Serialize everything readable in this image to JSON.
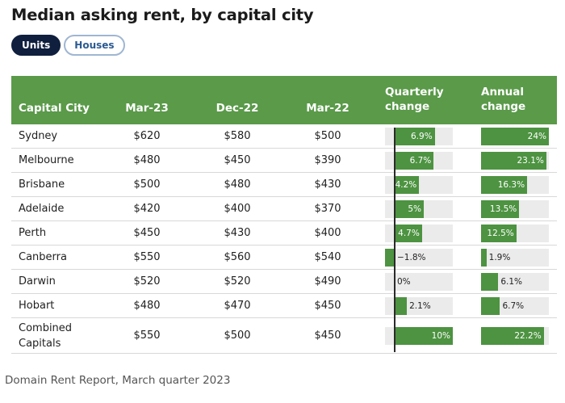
{
  "title": "Median asking rent, by capital city",
  "toggles": {
    "units": "Units",
    "houses": "Houses",
    "active": "units"
  },
  "source": "Domain Rent Report, March quarter 2023",
  "colors": {
    "header": "#5a9a49",
    "bar": "#4d9341",
    "track": "#ebebeb",
    "active_pill": "#0f1f3d"
  },
  "chart_data": {
    "type": "table",
    "title": "Median asking rent, by capital city",
    "columns": [
      "Capital City",
      "Mar-23",
      "Dec-22",
      "Mar-22",
      "Quarterly change",
      "Annual change"
    ],
    "column_headers": {
      "city": "Capital City",
      "mar23": "Mar-23",
      "dec22": "Dec-22",
      "mar22": "Mar-22",
      "quarterly_l1": "Quarterly",
      "quarterly_l2": "change",
      "annual_l1": "Annual",
      "annual_l2": "change"
    },
    "rows": [
      {
        "city": "Sydney",
        "city_l1": "Sydney",
        "city_l2": "",
        "mar23": "$620",
        "dec22": "$580",
        "mar22": "$500",
        "quarterly": 6.9,
        "quarterly_label": "6.9%",
        "annual": 24,
        "annual_label": "24%"
      },
      {
        "city": "Melbourne",
        "city_l1": "Melbourne",
        "city_l2": "",
        "mar23": "$480",
        "dec22": "$450",
        "mar22": "$390",
        "quarterly": 6.7,
        "quarterly_label": "6.7%",
        "annual": 23.1,
        "annual_label": "23.1%"
      },
      {
        "city": "Brisbane",
        "city_l1": "Brisbane",
        "city_l2": "",
        "mar23": "$500",
        "dec22": "$480",
        "mar22": "$430",
        "quarterly": 4.2,
        "quarterly_label": "4.2%",
        "annual": 16.3,
        "annual_label": "16.3%"
      },
      {
        "city": "Adelaide",
        "city_l1": "Adelaide",
        "city_l2": "",
        "mar23": "$420",
        "dec22": "$400",
        "mar22": "$370",
        "quarterly": 5,
        "quarterly_label": "5%",
        "annual": 13.5,
        "annual_label": "13.5%"
      },
      {
        "city": "Perth",
        "city_l1": "Perth",
        "city_l2": "",
        "mar23": "$450",
        "dec22": "$430",
        "mar22": "$400",
        "quarterly": 4.7,
        "quarterly_label": "4.7%",
        "annual": 12.5,
        "annual_label": "12.5%"
      },
      {
        "city": "Canberra",
        "city_l1": "Canberra",
        "city_l2": "",
        "mar23": "$550",
        "dec22": "$560",
        "mar22": "$540",
        "quarterly": -1.8,
        "quarterly_label": "−1.8%",
        "annual": 1.9,
        "annual_label": "1.9%"
      },
      {
        "city": "Darwin",
        "city_l1": "Darwin",
        "city_l2": "",
        "mar23": "$520",
        "dec22": "$520",
        "mar22": "$490",
        "quarterly": 0,
        "quarterly_label": "0%",
        "annual": 6.1,
        "annual_label": "6.1%"
      },
      {
        "city": "Hobart",
        "city_l1": "Hobart",
        "city_l2": "",
        "mar23": "$480",
        "dec22": "$470",
        "mar22": "$450",
        "quarterly": 2.1,
        "quarterly_label": "2.1%",
        "annual": 6.7,
        "annual_label": "6.7%"
      },
      {
        "city": "Combined Capitals",
        "city_l1": "Combined",
        "city_l2": "Capitals",
        "mar23": "$550",
        "dec22": "$500",
        "mar22": "$450",
        "quarterly": 10,
        "quarterly_label": "10%",
        "annual": 22.2,
        "annual_label": "22.2%"
      }
    ],
    "quarterly_range": [
      -2.5,
      10
    ],
    "annual_range": [
      0,
      24
    ]
  }
}
